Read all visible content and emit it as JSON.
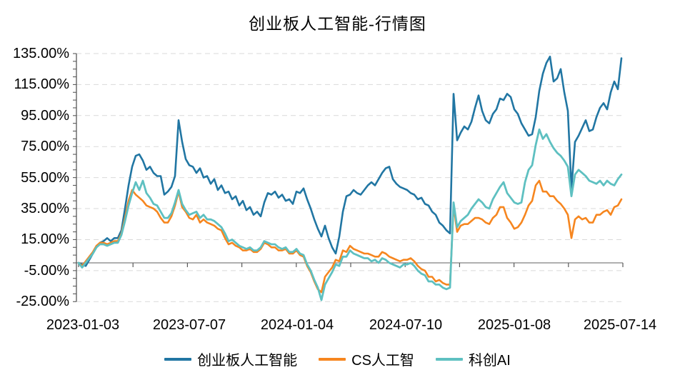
{
  "title": "创业板人工智能-行情图",
  "chart_data": {
    "type": "line",
    "title": "创业板人工智能-行情图",
    "x_start": "2023-01-03",
    "x_end": "2025-07-14",
    "x_tick_labels": [
      "2023-01-03",
      "2023-07-07",
      "2024-01-04",
      "2024-07-10",
      "2025-01-08",
      "2025-07-14"
    ],
    "y_tick_labels": [
      "135.00%",
      "115.00%",
      "95.00%",
      "75.00%",
      "55.00%",
      "35.00%",
      "15.00%",
      "-5.00%",
      "-25.00%"
    ],
    "y_unit": "%",
    "ylim": [
      -25,
      135
    ],
    "y_major_step": 20,
    "y_minor_step": 5,
    "grid": "horizontal dashed gridlines at labeled levels, solid axis line at 0%",
    "legend_position": "bottom",
    "x_sampling": "153 evenly spaced points from 2023-01-03 to 2025-07-14, values are cumulative return in percent",
    "series": [
      {
        "name": "创业板人工智能",
        "color": "#2176A3",
        "values": [
          0,
          -1,
          -2,
          2,
          6,
          10,
          13,
          14,
          16,
          14,
          16,
          16,
          21,
          35,
          50,
          62,
          69,
          70,
          66,
          60,
          62,
          58,
          56,
          56,
          44,
          46,
          49,
          56,
          92,
          78,
          67,
          63,
          62,
          58,
          61,
          55,
          56,
          51,
          54,
          47,
          50,
          45,
          46,
          41,
          43,
          37,
          40,
          34,
          36,
          31,
          33,
          30,
          39,
          45,
          44,
          46,
          42,
          44,
          40,
          41,
          38,
          46,
          45,
          48,
          41,
          35,
          28,
          22,
          17,
          24,
          16,
          10,
          6,
          17,
          33,
          43,
          44,
          47,
          45,
          44,
          47,
          50,
          52,
          50,
          54,
          58,
          61,
          62,
          54,
          51,
          49,
          48,
          47,
          45,
          44,
          41,
          42,
          38,
          37,
          33,
          31,
          26,
          24,
          21,
          19,
          109,
          79,
          84,
          88,
          86,
          91,
          100,
          108,
          98,
          92,
          90,
          96,
          99,
          106,
          105,
          109,
          107,
          99,
          96,
          90,
          86,
          82,
          83,
          94,
          111,
          122,
          129,
          133,
          117,
          119,
          125,
          110,
          98,
          48,
          78,
          82,
          87,
          92,
          85,
          86,
          94,
          100,
          103,
          99,
          110,
          117,
          112,
          132
        ]
      },
      {
        "name": "CS人工智",
        "color": "#F6861F",
        "values": [
          0,
          -2,
          1,
          4,
          7,
          11,
          13,
          13,
          12,
          13,
          14,
          14,
          19,
          29,
          40,
          47,
          44,
          42,
          40,
          37,
          36,
          35,
          33,
          29,
          26,
          26,
          30,
          37,
          46,
          36,
          33,
          29,
          28,
          31,
          26,
          28,
          26,
          25,
          24,
          22,
          21,
          16,
          12,
          13,
          11,
          10,
          8,
          8,
          9,
          7,
          7,
          9,
          13,
          12,
          10,
          10,
          8,
          8,
          9,
          6,
          6,
          8,
          5,
          4,
          -2,
          -6,
          -12,
          -17,
          -19,
          -9,
          -6,
          -3,
          2,
          1,
          8,
          7,
          11,
          9,
          8,
          7,
          6,
          6,
          5,
          4,
          4,
          7,
          6,
          4,
          3,
          2,
          1,
          2,
          2,
          3,
          1,
          -2,
          -4,
          -5,
          -9,
          -9,
          -12,
          -11,
          -13,
          -14,
          -14,
          37,
          20,
          24,
          25,
          25,
          27,
          29,
          29,
          28,
          26,
          25,
          29,
          31,
          36,
          36,
          29,
          26,
          22,
          23,
          26,
          31,
          37,
          40,
          50,
          53,
          46,
          46,
          43,
          43,
          40,
          38,
          35,
          31,
          16,
          28,
          30,
          28,
          29,
          26,
          26,
          31,
          31,
          33,
          34,
          31,
          36,
          37,
          41
        ]
      },
      {
        "name": "科创AI",
        "color": "#5EC0C1",
        "values": [
          0,
          -3,
          0,
          3,
          6,
          10,
          12,
          12,
          11,
          12,
          13,
          13,
          18,
          27,
          37,
          45,
          52,
          47,
          53,
          45,
          42,
          38,
          37,
          33,
          29,
          29,
          32,
          39,
          47,
          38,
          34,
          31,
          32,
          33,
          29,
          31,
          28,
          28,
          27,
          25,
          23,
          19,
          14,
          15,
          13,
          11,
          10,
          9,
          10,
          8,
          8,
          10,
          14,
          13,
          12,
          12,
          10,
          9,
          10,
          7,
          7,
          9,
          6,
          5,
          -1,
          -5,
          -11,
          -16,
          -24,
          -14,
          -10,
          -6,
          -1,
          -2,
          4,
          4,
          8,
          6,
          5,
          4,
          3,
          3,
          1,
          2,
          0,
          3,
          2,
          0,
          -1,
          -2,
          -3,
          -1,
          -1,
          0,
          -2,
          -5,
          -7,
          -8,
          -12,
          -12,
          -14,
          -14,
          -16,
          -17,
          -16,
          39,
          23,
          27,
          29,
          31,
          35,
          38,
          41,
          39,
          36,
          35,
          41,
          45,
          49,
          52,
          45,
          42,
          39,
          38,
          39,
          52,
          60,
          63,
          76,
          86,
          80,
          83,
          78,
          74,
          71,
          69,
          66,
          62,
          43,
          57,
          60,
          58,
          56,
          53,
          52,
          51,
          53,
          50,
          53,
          51,
          50,
          54,
          57
        ]
      }
    ],
    "style": {
      "gridline_color": "#d9d9d9",
      "zero_axis_color": "#808080",
      "axis_color": "#595959",
      "background": "#ffffff"
    }
  }
}
